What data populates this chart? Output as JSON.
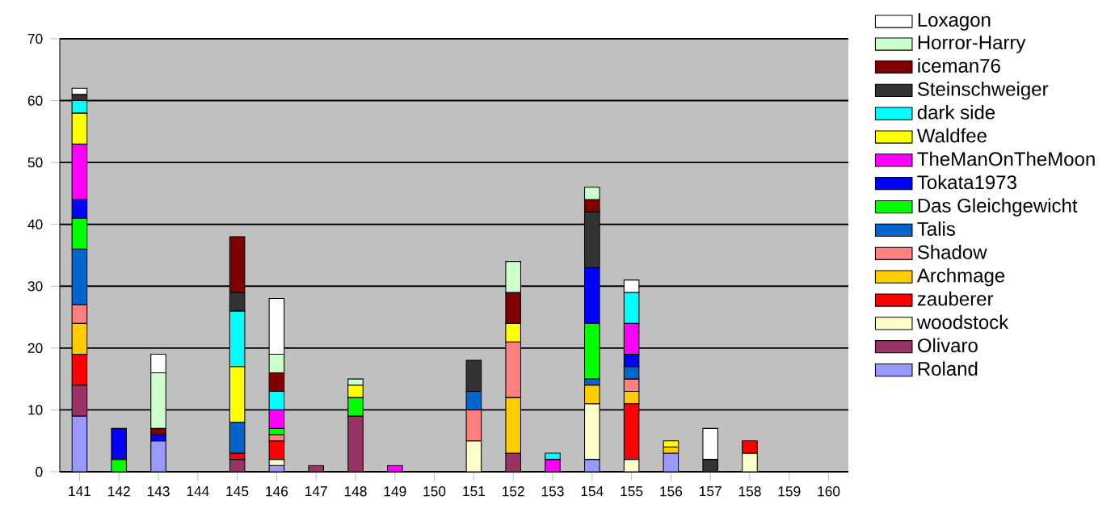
{
  "chart_data": {
    "type": "bar",
    "stacked": true,
    "grid": "y",
    "legend": "right",
    "categories": [
      "141",
      "142",
      "143",
      "144",
      "145",
      "146",
      "147",
      "148",
      "149",
      "150",
      "151",
      "152",
      "153",
      "154",
      "155",
      "156",
      "157",
      "158",
      "159",
      "160"
    ],
    "ylim": [
      0,
      70
    ],
    "yticks": [
      0,
      10,
      20,
      30,
      40,
      50,
      60,
      70
    ],
    "series": [
      {
        "name": "Roland",
        "color": "#9999ff",
        "values": [
          9,
          null,
          5,
          null,
          null,
          1,
          null,
          null,
          null,
          null,
          null,
          null,
          null,
          2,
          null,
          3,
          null,
          null,
          null,
          null
        ]
      },
      {
        "name": "Olivaro",
        "color": "#993366",
        "values": [
          5,
          null,
          null,
          null,
          2,
          null,
          1,
          9,
          null,
          null,
          null,
          3,
          null,
          null,
          null,
          null,
          null,
          null,
          null,
          null
        ]
      },
      {
        "name": "woodstock",
        "color": "#ffffcc",
        "values": [
          null,
          null,
          null,
          null,
          null,
          1,
          null,
          null,
          null,
          null,
          5,
          null,
          null,
          9,
          2,
          null,
          null,
          3,
          null,
          null
        ]
      },
      {
        "name": "zauberer",
        "color": "#ff0000",
        "values": [
          5,
          null,
          null,
          null,
          1,
          3,
          null,
          null,
          null,
          null,
          null,
          null,
          null,
          null,
          9,
          null,
          null,
          2,
          null,
          null
        ]
      },
      {
        "name": "Archmage",
        "color": "#ffcc00",
        "values": [
          5,
          null,
          null,
          null,
          null,
          null,
          null,
          null,
          null,
          null,
          null,
          9,
          null,
          3,
          2,
          1,
          null,
          null,
          null,
          null
        ]
      },
      {
        "name": "Shadow",
        "color": "#ff8080",
        "values": [
          3,
          null,
          null,
          null,
          null,
          1,
          null,
          null,
          null,
          null,
          5,
          9,
          null,
          null,
          2,
          null,
          null,
          null,
          null,
          null
        ]
      },
      {
        "name": "Talis",
        "color": "#0066cc",
        "values": [
          9,
          null,
          null,
          null,
          5,
          null,
          null,
          null,
          null,
          null,
          3,
          null,
          null,
          1,
          2,
          null,
          null,
          null,
          null,
          null
        ]
      },
      {
        "name": "Das Gleichgewicht",
        "color": "#00ff00",
        "values": [
          5,
          2,
          null,
          null,
          null,
          1,
          null,
          3,
          null,
          null,
          null,
          null,
          null,
          9,
          null,
          null,
          null,
          null,
          null,
          null
        ]
      },
      {
        "name": "Tokata1973",
        "color": "#0000ff",
        "values": [
          3,
          5,
          1,
          null,
          null,
          null,
          null,
          null,
          null,
          null,
          null,
          null,
          null,
          9,
          2,
          null,
          null,
          null,
          null,
          null
        ]
      },
      {
        "name": "TheManOnTheMoon",
        "color": "#ff00ff",
        "values": [
          9,
          null,
          null,
          null,
          null,
          3,
          null,
          null,
          1,
          null,
          null,
          null,
          2,
          null,
          5,
          null,
          null,
          null,
          null,
          null
        ]
      },
      {
        "name": "Waldfee",
        "color": "#ffff00",
        "values": [
          5,
          null,
          null,
          null,
          9,
          null,
          null,
          2,
          null,
          null,
          null,
          3,
          null,
          null,
          null,
          1,
          null,
          null,
          null,
          null
        ]
      },
      {
        "name": "dark side",
        "color": "#00ffff",
        "values": [
          2,
          null,
          null,
          null,
          9,
          3,
          null,
          null,
          null,
          null,
          null,
          null,
          1,
          null,
          5,
          null,
          null,
          null,
          null,
          null
        ]
      },
      {
        "name": "Steinschweiger",
        "color": "#333333",
        "values": [
          1,
          null,
          null,
          null,
          3,
          null,
          null,
          null,
          null,
          null,
          5,
          null,
          null,
          9,
          null,
          null,
          2,
          null,
          null,
          null
        ]
      },
      {
        "name": "iceman76",
        "color": "#800000",
        "values": [
          null,
          null,
          1,
          null,
          9,
          3,
          null,
          null,
          null,
          null,
          null,
          5,
          null,
          2,
          null,
          null,
          null,
          null,
          null,
          null
        ]
      },
      {
        "name": "Horror-Harry",
        "color": "#ccffcc",
        "values": [
          null,
          null,
          9,
          null,
          null,
          3,
          null,
          1,
          null,
          null,
          null,
          5,
          null,
          2,
          null,
          null,
          null,
          null,
          null,
          null
        ]
      },
      {
        "name": "Loxagon",
        "color": "#ffffff",
        "values": [
          1,
          null,
          3,
          null,
          null,
          9,
          null,
          null,
          null,
          null,
          null,
          null,
          null,
          null,
          2,
          null,
          5,
          null,
          null,
          null
        ]
      }
    ]
  }
}
